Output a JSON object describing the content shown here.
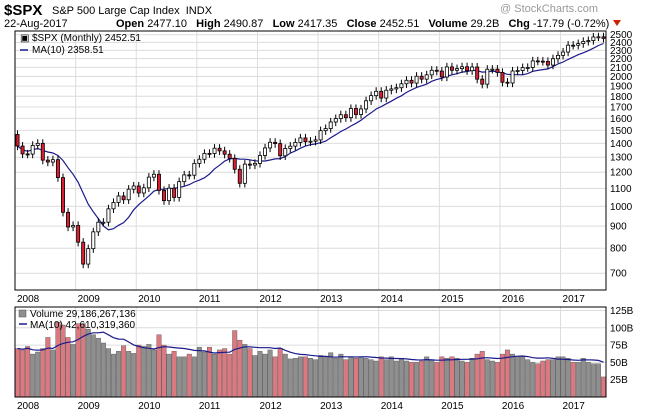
{
  "header": {
    "symbol": "$SPX",
    "company": "S&P 500 Large Cap Index",
    "exchange": "INDX",
    "watermark": "@ StockCharts.com",
    "date": "22-Aug-2017",
    "open_label": "Open",
    "open": "2477.10",
    "high_label": "High",
    "high": "2490.87",
    "low_label": "Low",
    "low": "2417.35",
    "close_label": "Close",
    "close": "2452.51",
    "volume_label": "Volume",
    "volume": "29.2B",
    "chg_label": "Chg",
    "chg": "-17.79 (-0.72%)"
  },
  "colors": {
    "up": "#ffffff",
    "down": "#dc1e32",
    "ma": "#1a1a8c",
    "vol_up": "#8f8f8f",
    "vol_down": "#dc7880",
    "grid": "#dcdcdc"
  },
  "chart_data": [
    {
      "type": "candlestick",
      "legend": [
        {
          "label": "$SPX (Monthly) 2452.51",
          "style": "candles"
        },
        {
          "label": "MA(10) 2358.51",
          "style": "line"
        }
      ],
      "y_scale": "log",
      "ylim": [
        640,
        2550
      ],
      "y_ticks": [
        700,
        800,
        900,
        1000,
        1100,
        1200,
        1300,
        1400,
        1500,
        1600,
        1700,
        1800,
        1900,
        2000,
        2100,
        2200,
        2300,
        2400,
        2500
      ],
      "x_ticks": [
        "2008",
        "2009",
        "2010",
        "2011",
        "2012",
        "2013",
        "2014",
        "2015",
        "2016",
        "2017"
      ],
      "start": "2008-01",
      "closes": [
        1380,
        1323,
        1322,
        1385,
        1400,
        1280,
        1267,
        1283,
        1166,
        969,
        896,
        903,
        826,
        735,
        798,
        873,
        919,
        919,
        987,
        1021,
        1057,
        1036,
        1096,
        1115,
        1074,
        1104,
        1169,
        1187,
        1089,
        1031,
        1102,
        1049,
        1141,
        1183,
        1181,
        1258,
        1286,
        1327,
        1326,
        1364,
        1345,
        1321,
        1292,
        1219,
        1131,
        1253,
        1247,
        1258,
        1312,
        1366,
        1408,
        1398,
        1310,
        1362,
        1379,
        1407,
        1441,
        1412,
        1416,
        1426,
        1498,
        1515,
        1569,
        1598,
        1631,
        1606,
        1686,
        1633,
        1682,
        1757,
        1806,
        1848,
        1783,
        1859,
        1872,
        1884,
        1924,
        1960,
        1931,
        2003,
        1972,
        2018,
        2068,
        2059,
        1995,
        2105,
        2068,
        2086,
        2107,
        2063,
        2104,
        1972,
        1920,
        2079,
        2080,
        2044,
        1940,
        1932,
        2060,
        2065,
        2097,
        2099,
        2174,
        2171,
        2168,
        2126,
        2199,
        2239,
        2279,
        2364,
        2363,
        2384,
        2412,
        2423,
        2470,
        2472,
        2452
      ]
    },
    {
      "type": "bar",
      "title": "Volume 29,186,267,136",
      "legend": [
        {
          "label": "MA(10) 42,610,319,360",
          "style": "line"
        }
      ],
      "units": "billions",
      "ylim": [
        0,
        130
      ],
      "y_ticks": [
        "25B",
        "50B",
        "75B",
        "100B",
        "125B"
      ],
      "y_tick_values": [
        25,
        50,
        75,
        100,
        125
      ],
      "x_ticks": [
        "2008",
        "2009",
        "2010",
        "2011",
        "2012",
        "2013",
        "2014",
        "2015",
        "2016",
        "2017"
      ],
      "values": [
        70,
        68,
        73,
        62,
        65,
        70,
        86,
        68,
        108,
        104,
        86,
        76,
        106,
        106,
        98,
        90,
        85,
        78,
        70,
        62,
        66,
        74,
        66,
        63,
        75,
        73,
        76,
        68,
        90,
        75,
        62,
        66,
        58,
        58,
        62,
        58,
        72,
        65,
        72,
        62,
        68,
        70,
        62,
        96,
        82,
        76,
        70,
        60,
        66,
        62,
        68,
        58,
        70,
        62,
        55,
        56,
        58,
        58,
        56,
        54,
        60,
        58,
        64,
        56,
        62,
        54,
        58,
        56,
        58,
        56,
        54,
        52,
        58,
        54,
        58,
        52,
        56,
        52,
        50,
        50,
        52,
        58,
        54,
        50,
        58,
        56,
        58,
        56,
        52,
        50,
        56,
        62,
        66,
        54,
        52,
        50,
        62,
        68,
        62,
        58,
        58,
        54,
        50,
        48,
        52,
        54,
        54,
        58,
        58,
        56,
        50,
        50,
        56,
        50,
        48,
        48,
        29
      ]
    }
  ]
}
